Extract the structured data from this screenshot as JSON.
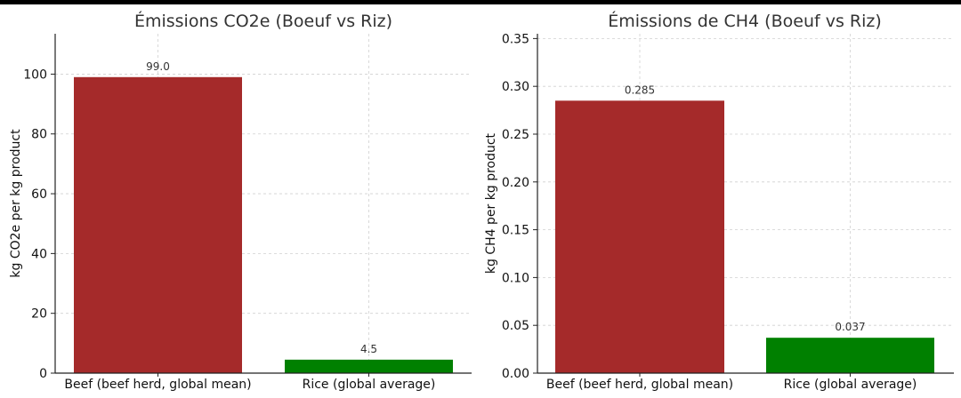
{
  "chart_data": [
    {
      "type": "bar",
      "title": "Émissions CO2e (Boeuf vs Riz)",
      "xlabel": "",
      "ylabel": "kg CO2e per kg product",
      "categories": [
        "Beef (beef herd, global mean)",
        "Rice (global average)"
      ],
      "values": [
        99.0,
        4.5
      ],
      "value_labels": [
        "99.0",
        "4.5"
      ],
      "colors": [
        "#a52a2a",
        "#008000"
      ],
      "ylim": [
        0,
        113.5
      ],
      "yticks": [
        0,
        20,
        40,
        60,
        80,
        100
      ],
      "ytick_labels": [
        "0",
        "20",
        "40",
        "60",
        "80",
        "100"
      ],
      "grid": true
    },
    {
      "type": "bar",
      "title": "Émissions de CH4 (Boeuf vs Riz)",
      "xlabel": "",
      "ylabel": "kg CH4 per kg product",
      "categories": [
        "Beef (beef herd, global mean)",
        "Rice (global average)"
      ],
      "values": [
        0.285,
        0.037
      ],
      "value_labels": [
        "0.285",
        "0.037"
      ],
      "colors": [
        "#a52a2a",
        "#008000"
      ],
      "ylim": [
        0,
        0.355
      ],
      "yticks": [
        0,
        0.05,
        0.1,
        0.15,
        0.2,
        0.25,
        0.3,
        0.35
      ],
      "ytick_labels": [
        "0.00",
        "0.05",
        "0.10",
        "0.15",
        "0.20",
        "0.25",
        "0.30",
        "0.35"
      ],
      "grid": true
    }
  ]
}
